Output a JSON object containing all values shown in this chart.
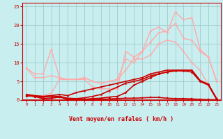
{
  "bg_color": "#c8eef0",
  "grid_color": "#a0cccc",
  "line_color_dark": "#cc0000",
  "xlabel": "Vent moyen/en rafales ( km/h )",
  "ylabel_ticks": [
    0,
    5,
    10,
    15,
    20,
    25
  ],
  "xlim": [
    -0.5,
    23.5
  ],
  "ylim": [
    0,
    26
  ],
  "x": [
    0,
    1,
    2,
    3,
    4,
    5,
    6,
    7,
    8,
    9,
    10,
    11,
    12,
    13,
    14,
    15,
    16,
    17,
    18,
    19,
    20,
    21,
    22,
    23
  ],
  "series": [
    {
      "y": [
        1.2,
        1.0,
        0.4,
        0.5,
        0.8,
        0.2,
        0.1,
        0.1,
        0.2,
        0.2,
        0.3,
        0.4,
        0.5,
        0.5,
        0.6,
        0.7,
        0.7,
        0.5,
        0.4,
        0.4,
        0.3,
        0.2,
        0.1,
        0.1
      ],
      "color": "#cc0000",
      "lw": 1.2,
      "marker": "s",
      "ms": 1.8,
      "zorder": 5
    },
    {
      "y": [
        1.2,
        1.0,
        0.4,
        0.5,
        1.0,
        0.3,
        0.2,
        0.2,
        0.4,
        0.5,
        0.8,
        1.0,
        2.0,
        4.0,
        5.0,
        6.0,
        7.0,
        7.5,
        7.8,
        7.8,
        7.5,
        5.0,
        4.0,
        0.2
      ],
      "color": "#cc0000",
      "lw": 1.2,
      "marker": "D",
      "ms": 1.5,
      "zorder": 5
    },
    {
      "y": [
        1.2,
        1.0,
        0.8,
        1.0,
        1.0,
        0.5,
        0.4,
        0.6,
        1.0,
        1.5,
        2.5,
        3.5,
        4.5,
        5.0,
        5.5,
        6.5,
        7.0,
        7.5,
        8.0,
        8.0,
        8.0,
        5.2,
        4.2,
        0.3
      ],
      "color": "#cc0000",
      "lw": 1.2,
      "marker": "^",
      "ms": 1.5,
      "zorder": 5
    },
    {
      "y": [
        1.5,
        1.2,
        1.0,
        1.2,
        1.5,
        1.2,
        2.0,
        2.5,
        3.0,
        3.5,
        4.0,
        4.5,
        5.0,
        5.5,
        6.0,
        7.0,
        7.5,
        8.0,
        8.0,
        8.0,
        8.0,
        5.2,
        4.2,
        0.4
      ],
      "color": "#cc0000",
      "lw": 1.2,
      "marker": "o",
      "ms": 1.5,
      "zorder": 5
    },
    {
      "y": [
        8.5,
        7.0,
        7.0,
        13.5,
        6.0,
        5.5,
        5.5,
        5.5,
        3.5,
        3.0,
        3.0,
        3.0,
        13.0,
        11.5,
        13.0,
        18.5,
        19.5,
        18.0,
        23.5,
        21.5,
        22.0,
        13.5,
        11.5,
        5.0
      ],
      "color": "#ffaaaa",
      "lw": 1.0,
      "marker": "D",
      "ms": 1.5,
      "zorder": 3
    },
    {
      "y": [
        8.5,
        6.0,
        6.0,
        6.5,
        6.0,
        5.5,
        5.5,
        6.0,
        5.0,
        4.5,
        5.0,
        5.5,
        11.0,
        10.0,
        13.0,
        15.5,
        18.0,
        18.5,
        20.5,
        16.5,
        16.0,
        13.0,
        11.5,
        5.0
      ],
      "color": "#ffaaaa",
      "lw": 1.0,
      "marker": "o",
      "ms": 1.5,
      "zorder": 3
    },
    {
      "y": [
        1.5,
        1.2,
        1.2,
        1.8,
        5.5,
        5.5,
        5.5,
        6.0,
        5.0,
        4.5,
        5.0,
        5.5,
        8.0,
        11.0,
        11.0,
        12.0,
        15.0,
        16.0,
        15.5,
        13.0,
        10.0,
        8.0,
        4.0,
        0.5
      ],
      "color": "#ffaaaa",
      "lw": 1.0,
      "marker": "s",
      "ms": 1.5,
      "zorder": 3
    }
  ],
  "arrow_labels": [
    "↓",
    "↓",
    "?",
    "?",
    "↑",
    "↑",
    "↑",
    "↑",
    "↖",
    "←",
    "↓",
    "↓",
    "←",
    "↙",
    "↓",
    "↓",
    "↓",
    "↓",
    "↓",
    "↙",
    "↙",
    "↓",
    "↓",
    "↙"
  ]
}
